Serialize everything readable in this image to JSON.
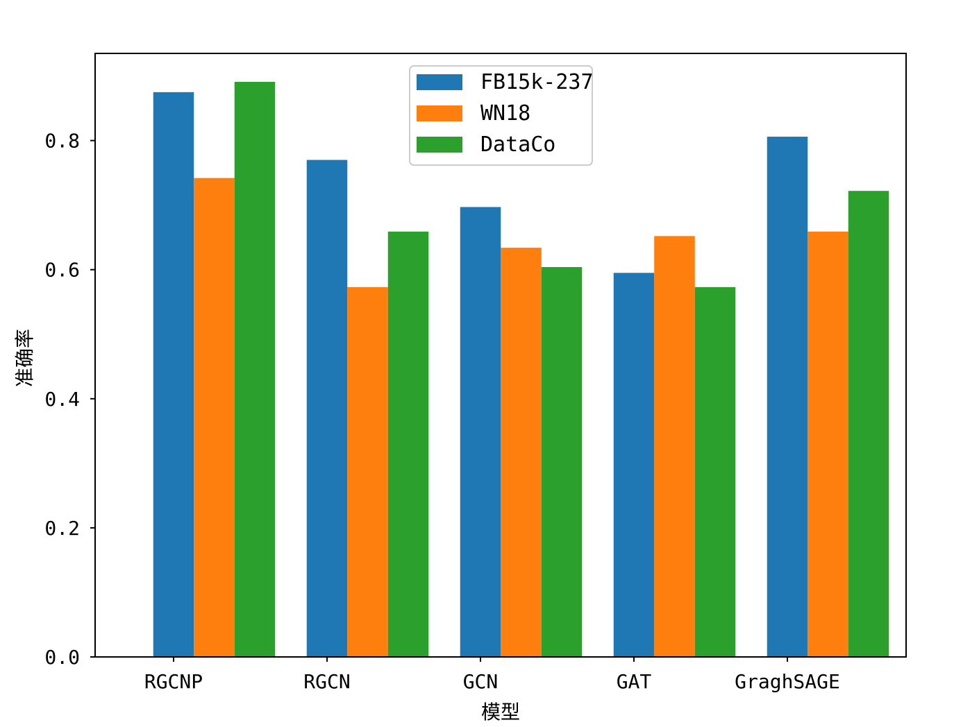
{
  "chart_data": {
    "type": "bar",
    "title": "",
    "xlabel": "模型",
    "ylabel": "准确率",
    "categories": [
      "RGCNP",
      "RGCN",
      "GCN",
      "GAT",
      "GraghSAGE"
    ],
    "series": [
      {
        "name": "FB15k-237",
        "color": "#1f77b4",
        "values": [
          0.875,
          0.77,
          0.697,
          0.595,
          0.806
        ]
      },
      {
        "name": "WN18",
        "color": "#ff7f0e",
        "values": [
          0.742,
          0.573,
          0.634,
          0.652,
          0.659
        ]
      },
      {
        "name": "DataCo",
        "color": "#2ca02c",
        "values": [
          0.891,
          0.659,
          0.604,
          0.573,
          0.722
        ]
      }
    ],
    "yticks": [
      {
        "value": 0.0,
        "label": "0.0"
      },
      {
        "value": 0.2,
        "label": "0.2"
      },
      {
        "value": 0.4,
        "label": "0.4"
      },
      {
        "value": 0.6,
        "label": "0.6"
      },
      {
        "value": 0.8,
        "label": "0.8"
      }
    ],
    "ylim": [
      0,
      0.935
    ],
    "grid": false,
    "legend_position": "top-center"
  }
}
